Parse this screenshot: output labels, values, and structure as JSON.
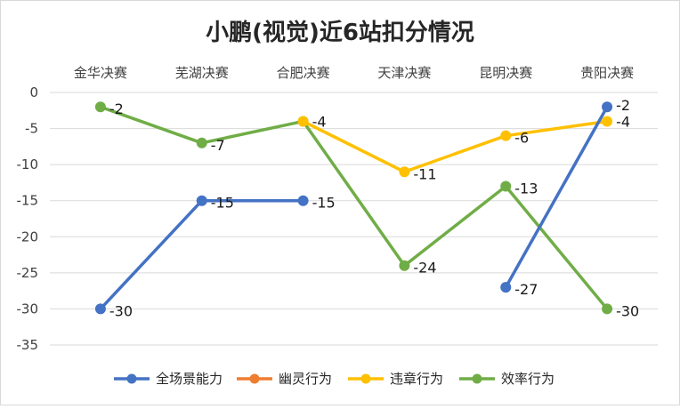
{
  "chart_data": {
    "type": "line",
    "title": "小鹏(视觉)近6站扣分情况",
    "categories": [
      "金华决赛",
      "芜湖决赛",
      "合肥决赛",
      "天津决赛",
      "昆明决赛",
      "贵阳决赛"
    ],
    "ylim": [
      -35,
      0
    ],
    "yticks": [
      0,
      -5,
      -10,
      -15,
      -20,
      -25,
      -30,
      -35
    ],
    "x_axis_position": "top",
    "grid": true,
    "legend_position": "bottom",
    "series": [
      {
        "name": "全场景能力",
        "color": "#4472C4",
        "values": [
          -30,
          -15,
          -15,
          null,
          -27,
          -2
        ]
      },
      {
        "name": "幽灵行为",
        "color": "#ED7D31",
        "values": [
          null,
          null,
          null,
          null,
          null,
          null
        ]
      },
      {
        "name": "违章行为",
        "color": "#FFC000",
        "values": [
          null,
          null,
          -4,
          -11,
          -6,
          -4
        ]
      },
      {
        "name": "效率行为",
        "color": "#70AD47",
        "values": [
          -2,
          -7,
          -4,
          -24,
          -13,
          -30
        ]
      }
    ]
  }
}
